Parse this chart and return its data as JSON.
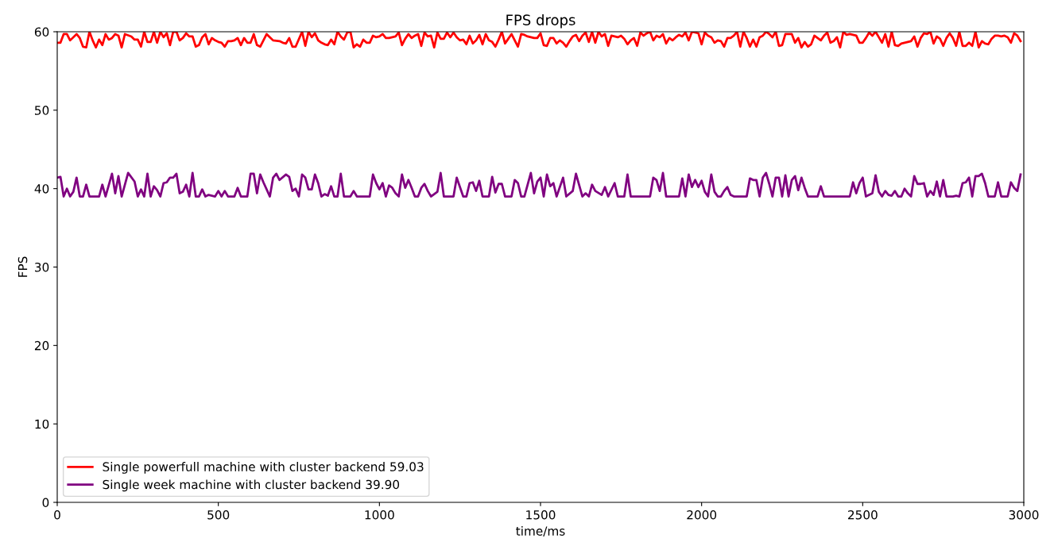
{
  "chart_data": {
    "type": "line",
    "title": "FPS drops",
    "xlabel": "time/ms",
    "ylabel": "FPS",
    "xlim": [
      0,
      3000
    ],
    "xticks": [
      0,
      500,
      1000,
      1500,
      2000,
      2500,
      3000
    ],
    "ylim": [
      0,
      60
    ],
    "yticks": [
      0,
      10,
      20,
      30,
      40,
      50,
      60
    ],
    "grid": false,
    "legend": "bottom left",
    "series": [
      {
        "name": "Single powerfull machine with cluster backend 59.03",
        "color": "#ff0000",
        "x": [
          0,
          10,
          20,
          30,
          40,
          60,
          70,
          80,
          90,
          100,
          110,
          120,
          130,
          140,
          150,
          160,
          170,
          180,
          190,
          200,
          210,
          230,
          240,
          250,
          260,
          270,
          280,
          290,
          300,
          310,
          320,
          330,
          340,
          350,
          360,
          370,
          380,
          390,
          400,
          410,
          420,
          430,
          440,
          450,
          460,
          470,
          480,
          490,
          500,
          510,
          520,
          530,
          540,
          550,
          560,
          570,
          580,
          590,
          600,
          610,
          620,
          630,
          650,
          660,
          670,
          690,
          700,
          710,
          720,
          730,
          740,
          760,
          770,
          780,
          790,
          800,
          810,
          820,
          830,
          840,
          850,
          860,
          870,
          880,
          890,
          900,
          910,
          920,
          930,
          940,
          950,
          960,
          970,
          980,
          990,
          1000,
          1010,
          1020,
          1030,
          1040,
          1050,
          1060,
          1070,
          1080,
          1090,
          1100,
          1110,
          1120,
          1130,
          1140,
          1150,
          1160,
          1170,
          1180,
          1190,
          1200,
          1210,
          1220,
          1230,
          1240,
          1250,
          1260,
          1270,
          1280,
          1290,
          1300,
          1310,
          1320,
          1330,
          1340,
          1350,
          1360,
          1370,
          1380,
          1390,
          1400,
          1410,
          1430,
          1440,
          1450,
          1460,
          1470,
          1480,
          1490,
          1500,
          1510,
          1520,
          1530,
          1540,
          1550,
          1560,
          1570,
          1580,
          1590,
          1600,
          1610,
          1620,
          1630,
          1640,
          1650,
          1660,
          1670,
          1680,
          1690,
          1700,
          1710,
          1720,
          1730,
          1740,
          1750,
          1760,
          1770,
          1780,
          1790,
          1800,
          1810,
          1820,
          1830,
          1840,
          1850,
          1860,
          1870,
          1880,
          1890,
          1900,
          1910,
          1920,
          1930,
          1940,
          1950,
          1960,
          1970,
          1980,
          1990,
          2000,
          2010,
          2020,
          2030,
          2040,
          2050,
          2060,
          2070,
          2080,
          2090,
          2100,
          2110,
          2120,
          2130,
          2140,
          2150,
          2160,
          2170,
          2180,
          2190,
          2200,
          2210,
          2220,
          2230,
          2240,
          2250,
          2260,
          2270,
          2280,
          2290,
          2300,
          2310,
          2320,
          2330,
          2340,
          2350,
          2360,
          2370,
          2380,
          2390,
          2400,
          2410,
          2420,
          2430,
          2440,
          2450,
          2460,
          2470,
          2480,
          2490,
          2500,
          2510,
          2520,
          2530,
          2540,
          2550,
          2560,
          2570,
          2580,
          2590,
          2600,
          2610,
          2620,
          2630,
          2640,
          2650,
          2660,
          2670,
          2680,
          2690,
          2700,
          2710,
          2720,
          2730,
          2740,
          2750,
          2760,
          2770,
          2780,
          2790,
          2800,
          2810,
          2820,
          2830,
          2840,
          2850,
          2860,
          2870,
          2880,
          2890,
          2900,
          2910,
          2920,
          2930,
          2940,
          2950,
          2960,
          2970,
          2980,
          2990
        ],
        "values": [
          58.6,
          58.6,
          59.7,
          59.7,
          58.9,
          59.7,
          59.2,
          58.1,
          58.0,
          60.0,
          58.9,
          58.0,
          59.0,
          58.3,
          59.7,
          59.0,
          59.2,
          59.7,
          59.5,
          58.0,
          59.7,
          59.4,
          59.0,
          59.0,
          58.1,
          60.0,
          58.7,
          58.7,
          60.0,
          58.6,
          60.0,
          59.3,
          59.8,
          58.3,
          60.0,
          60.0,
          58.9,
          59.2,
          59.8,
          59.4,
          59.4,
          58.1,
          58.3,
          59.3,
          59.7,
          58.4,
          59.2,
          58.9,
          58.7,
          58.6,
          58.1,
          58.8,
          58.8,
          58.9,
          59.2,
          58.3,
          59.2,
          58.6,
          58.6,
          59.7,
          58.3,
          58.1,
          59.7,
          59.3,
          58.9,
          58.8,
          58.6,
          58.5,
          59.2,
          58.1,
          58.1,
          60.0,
          58.2,
          60.0,
          59.3,
          59.8,
          58.9,
          58.6,
          58.4,
          58.3,
          59.0,
          58.4,
          60.0,
          59.4,
          59.0,
          59.9,
          60.0,
          58.0,
          58.4,
          58.1,
          59.0,
          58.6,
          58.6,
          59.5,
          59.3,
          59.4,
          59.7,
          59.2,
          59.2,
          59.3,
          59.4,
          59.9,
          58.3,
          59.1,
          59.7,
          59.2,
          59.5,
          59.7,
          58.2,
          59.9,
          59.4,
          59.5,
          58.0,
          59.9,
          59.1,
          59.1,
          59.9,
          59.3,
          59.9,
          59.3,
          58.9,
          59.0,
          58.4,
          59.5,
          58.5,
          58.9,
          59.6,
          58.4,
          59.7,
          58.9,
          58.7,
          58.1,
          59.0,
          60.0,
          58.5,
          59.1,
          59.7,
          58.1,
          59.7,
          59.6,
          59.4,
          59.3,
          59.2,
          59.2,
          59.8,
          58.3,
          58.2,
          59.2,
          59.2,
          58.5,
          58.9,
          58.6,
          58.1,
          58.8,
          59.4,
          59.6,
          58.8,
          59.5,
          59.9,
          58.7,
          60.0,
          58.6,
          60.0,
          59.4,
          59.7,
          58.2,
          59.5,
          59.4,
          59.3,
          59.5,
          59.1,
          58.4,
          58.9,
          59.2,
          58.2,
          59.9,
          59.5,
          59.8,
          60.0,
          58.9,
          59.5,
          59.3,
          59.7,
          58.5,
          59.2,
          58.9,
          59.3,
          59.6,
          59.4,
          59.9,
          58.9,
          60.0,
          59.9,
          59.8,
          58.4,
          59.9,
          59.5,
          59.3,
          58.6,
          58.9,
          58.8,
          58.1,
          59.2,
          59.2,
          59.5,
          60.0,
          58.1,
          60.0,
          59.2,
          58.1,
          59.0,
          58.1,
          59.3,
          59.5,
          60.0,
          59.7,
          59.3,
          60.0,
          58.2,
          58.3,
          59.7,
          59.7,
          59.7,
          58.6,
          59.2,
          58.0,
          58.7,
          58.1,
          58.4,
          59.5,
          59.2,
          58.9,
          59.5,
          59.9,
          58.6,
          58.8,
          59.3,
          58.0,
          60.0,
          59.6,
          59.7,
          59.6,
          59.5,
          58.6,
          58.6,
          59.2,
          59.9,
          59.5,
          60.0,
          59.3,
          58.6,
          59.7,
          58.1,
          60.0,
          58.3,
          58.2,
          58.5,
          58.6,
          58.7,
          58.8,
          59.4,
          58.1,
          59.2,
          59.8,
          59.7,
          60.0,
          58.5,
          59.4,
          59.1,
          58.2,
          59.2,
          59.8,
          59.2,
          58.2,
          60.0,
          58.2,
          58.2,
          58.6,
          58.2,
          60.0,
          58.0,
          58.8,
          58.5,
          58.4,
          59.1,
          59.5,
          59.5,
          59.4,
          59.5,
          59.3,
          58.6,
          59.8,
          59.5,
          58.8
        ]
      },
      {
        "name": "Single week machine with cluster backend 39.90",
        "color": "#800080",
        "x": [
          0,
          10,
          20,
          30,
          40,
          50,
          60,
          70,
          80,
          90,
          100,
          130,
          140,
          150,
          170,
          180,
          190,
          200,
          220,
          240,
          250,
          260,
          270,
          280,
          290,
          300,
          310,
          320,
          330,
          340,
          350,
          360,
          370,
          380,
          390,
          400,
          410,
          420,
          430,
          440,
          450,
          460,
          470,
          490,
          500,
          510,
          520,
          530,
          550,
          560,
          570,
          590,
          600,
          610,
          620,
          630,
          640,
          660,
          670,
          680,
          690,
          710,
          720,
          730,
          740,
          750,
          760,
          770,
          780,
          790,
          800,
          810,
          820,
          830,
          840,
          850,
          860,
          870,
          880,
          890,
          910,
          920,
          930,
          970,
          980,
          990,
          1000,
          1010,
          1020,
          1030,
          1040,
          1050,
          1060,
          1070,
          1080,
          1090,
          1100,
          1110,
          1120,
          1130,
          1140,
          1150,
          1160,
          1180,
          1190,
          1200,
          1230,
          1240,
          1250,
          1260,
          1270,
          1280,
          1290,
          1300,
          1310,
          1320,
          1340,
          1350,
          1360,
          1370,
          1380,
          1390,
          1410,
          1420,
          1430,
          1440,
          1450,
          1470,
          1480,
          1490,
          1500,
          1510,
          1520,
          1530,
          1540,
          1550,
          1570,
          1580,
          1600,
          1610,
          1630,
          1640,
          1650,
          1660,
          1670,
          1690,
          1700,
          1710,
          1730,
          1740,
          1760,
          1770,
          1780,
          1840,
          1850,
          1860,
          1870,
          1880,
          1890,
          1930,
          1940,
          1950,
          1960,
          1970,
          1980,
          1990,
          2000,
          2010,
          2020,
          2030,
          2040,
          2050,
          2060,
          2070,
          2080,
          2090,
          2100,
          2140,
          2150,
          2160,
          2170,
          2180,
          2190,
          2200,
          2210,
          2220,
          2230,
          2240,
          2250,
          2260,
          2270,
          2280,
          2290,
          2300,
          2310,
          2320,
          2330,
          2360,
          2370,
          2380,
          2460,
          2470,
          2480,
          2490,
          2500,
          2510,
          2530,
          2540,
          2550,
          2560,
          2570,
          2580,
          2590,
          2600,
          2610,
          2620,
          2630,
          2640,
          2650,
          2660,
          2670,
          2680,
          2690,
          2700,
          2710,
          2720,
          2730,
          2740,
          2750,
          2760,
          2780,
          2790,
          2800,
          2810,
          2820,
          2830,
          2840,
          2850,
          2860,
          2870,
          2880,
          2890,
          2910,
          2920,
          2930,
          2950,
          2960,
          2970,
          2980,
          2990
        ],
        "values": [
          41.4,
          41.5,
          39.0,
          40.0,
          39.0,
          39.6,
          41.4,
          39.0,
          39.0,
          40.5,
          39.0,
          39.0,
          40.5,
          39.0,
          41.9,
          39.4,
          41.6,
          39.0,
          42.0,
          40.9,
          39.0,
          39.9,
          39.0,
          41.9,
          39.0,
          40.3,
          39.8,
          39.0,
          40.7,
          40.8,
          41.4,
          41.4,
          41.9,
          39.4,
          39.6,
          40.5,
          39.0,
          42.0,
          39.0,
          39.0,
          39.9,
          39.0,
          39.2,
          39.0,
          39.7,
          39.0,
          39.7,
          39.0,
          39.0,
          40.1,
          39.0,
          39.0,
          41.9,
          41.9,
          39.4,
          41.8,
          40.8,
          39.0,
          41.4,
          41.9,
          41.1,
          41.8,
          41.5,
          39.7,
          40.0,
          39.0,
          41.8,
          41.4,
          39.9,
          39.9,
          41.8,
          40.7,
          39.0,
          39.3,
          39.1,
          40.3,
          39.0,
          39.0,
          41.9,
          39.0,
          39.0,
          39.7,
          39.0,
          39.0,
          41.8,
          40.7,
          39.9,
          40.7,
          39.0,
          40.4,
          40.1,
          39.4,
          39.0,
          41.8,
          40.1,
          41.1,
          40.1,
          39.0,
          39.0,
          40.1,
          40.6,
          39.7,
          39.0,
          39.6,
          42.0,
          39.0,
          39.0,
          41.4,
          40.2,
          39.0,
          39.0,
          40.7,
          40.8,
          39.7,
          41.0,
          39.0,
          39.0,
          41.5,
          39.5,
          40.6,
          40.6,
          39.0,
          39.0,
          41.1,
          40.7,
          39.0,
          39.0,
          42.0,
          39.4,
          40.9,
          41.4,
          39.0,
          41.8,
          40.3,
          40.7,
          39.0,
          41.4,
          39.0,
          39.7,
          41.9,
          39.0,
          39.4,
          39.0,
          40.5,
          39.7,
          39.2,
          40.2,
          39.0,
          40.7,
          39.0,
          39.0,
          41.8,
          39.0,
          39.0,
          41.4,
          41.1,
          39.7,
          42.0,
          39.0,
          39.0,
          41.3,
          39.0,
          41.8,
          40.2,
          41.1,
          40.2,
          41.0,
          39.6,
          39.0,
          41.8,
          39.6,
          39.0,
          39.0,
          39.7,
          40.2,
          39.2,
          39.0,
          39.0,
          41.3,
          41.1,
          41.1,
          39.0,
          41.4,
          42.0,
          40.6,
          39.0,
          41.4,
          41.4,
          39.0,
          41.7,
          39.0,
          41.1,
          41.6,
          39.8,
          41.4,
          40.1,
          39.0,
          39.0,
          40.3,
          39.0,
          39.0,
          40.8,
          39.4,
          40.7,
          41.4,
          39.0,
          39.4,
          41.7,
          39.6,
          39.0,
          39.7,
          39.2,
          39.1,
          39.7,
          39.0,
          39.0,
          40.0,
          39.4,
          39.0,
          41.6,
          40.6,
          40.6,
          40.7,
          39.0,
          39.7,
          39.2,
          40.9,
          39.0,
          41.1,
          39.0,
          39.0,
          39.1,
          39.0,
          40.7,
          40.8,
          41.4,
          39.0,
          41.6,
          41.6,
          41.9,
          40.7,
          39.0,
          39.0,
          40.8,
          39.0,
          39.0,
          40.8,
          40.1,
          39.7,
          41.8
        ]
      }
    ]
  }
}
